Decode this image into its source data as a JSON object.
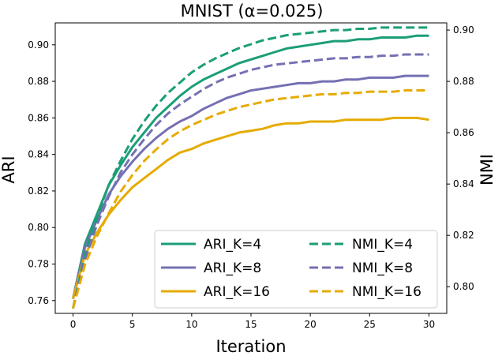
{
  "chart_data": {
    "type": "line",
    "title": "MNIST (α=0.025)",
    "xlabel": "Iteration",
    "ylabel_left": "ARI",
    "ylabel_right": "NMI",
    "xlim": [
      -1.5,
      31.5
    ],
    "ylim_left": [
      0.753,
      0.912
    ],
    "ylim_right": [
      0.7896,
      0.9028
    ],
    "xticks": [
      0,
      5,
      10,
      15,
      20,
      25,
      30
    ],
    "yticks_left": [
      0.76,
      0.78,
      0.8,
      0.82,
      0.84,
      0.86,
      0.88,
      0.9
    ],
    "yticks_right": [
      0.8,
      0.82,
      0.84,
      0.86,
      0.88,
      0.9
    ],
    "yticks_left_labels": [
      "0.76",
      "0.78",
      "0.80",
      "0.82",
      "0.84",
      "0.86",
      "0.88",
      "0.90"
    ],
    "yticks_right_labels": [
      "0.80",
      "0.82",
      "0.84",
      "0.86",
      "0.88",
      "0.90"
    ],
    "grid": false,
    "legend_position": "lower-right",
    "legend_columns": 2,
    "x": [
      0,
      1,
      2,
      3,
      4,
      5,
      6,
      7,
      8,
      9,
      10,
      11,
      12,
      13,
      14,
      15,
      16,
      17,
      18,
      19,
      20,
      21,
      22,
      23,
      24,
      25,
      26,
      27,
      28,
      29,
      30
    ],
    "series": [
      {
        "name": "ARI_K=4",
        "axis": "left",
        "style": "solid",
        "color": "#1b9e77",
        "values": [
          0.761,
          0.791,
          0.807,
          0.823,
          0.834,
          0.844,
          0.852,
          0.86,
          0.866,
          0.872,
          0.877,
          0.881,
          0.884,
          0.887,
          0.89,
          0.892,
          0.894,
          0.896,
          0.898,
          0.899,
          0.9,
          0.901,
          0.902,
          0.902,
          0.903,
          0.903,
          0.904,
          0.904,
          0.904,
          0.905,
          0.905
        ]
      },
      {
        "name": "ARI_K=8",
        "axis": "left",
        "style": "solid",
        "color": "#7570b3",
        "values": [
          0.761,
          0.789,
          0.804,
          0.818,
          0.828,
          0.836,
          0.843,
          0.849,
          0.854,
          0.858,
          0.861,
          0.865,
          0.868,
          0.871,
          0.873,
          0.875,
          0.876,
          0.877,
          0.878,
          0.879,
          0.879,
          0.88,
          0.88,
          0.881,
          0.881,
          0.882,
          0.882,
          0.882,
          0.883,
          0.883,
          0.883
        ]
      },
      {
        "name": "ARI_K=16",
        "axis": "left",
        "style": "solid",
        "color": "#e6ab02",
        "values": [
          0.761,
          0.785,
          0.797,
          0.807,
          0.815,
          0.822,
          0.827,
          0.832,
          0.837,
          0.841,
          0.843,
          0.846,
          0.848,
          0.85,
          0.852,
          0.853,
          0.854,
          0.856,
          0.857,
          0.857,
          0.858,
          0.858,
          0.858,
          0.859,
          0.859,
          0.859,
          0.859,
          0.86,
          0.86,
          0.86,
          0.859
        ]
      },
      {
        "name": "NMI_K=4",
        "axis": "right",
        "style": "dashed",
        "color": "#1b9e77",
        "values": [
          0.7915,
          0.8125,
          0.8265,
          0.8395,
          0.849,
          0.8575,
          0.8645,
          0.8705,
          0.8755,
          0.8795,
          0.8835,
          0.8865,
          0.889,
          0.891,
          0.893,
          0.8945,
          0.896,
          0.897,
          0.898,
          0.8985,
          0.899,
          0.8995,
          0.9,
          0.9,
          0.9005,
          0.9005,
          0.901,
          0.901,
          0.901,
          0.901,
          0.901
        ]
      },
      {
        "name": "NMI_K=8",
        "axis": "right",
        "style": "dashed",
        "color": "#7570b3",
        "values": [
          0.7915,
          0.8105,
          0.824,
          0.835,
          0.8445,
          0.8515,
          0.8575,
          0.863,
          0.8675,
          0.871,
          0.874,
          0.877,
          0.8795,
          0.8815,
          0.883,
          0.8845,
          0.8855,
          0.8865,
          0.887,
          0.8875,
          0.888,
          0.8885,
          0.889,
          0.889,
          0.8895,
          0.8895,
          0.89,
          0.89,
          0.8905,
          0.8905,
          0.8905
        ]
      },
      {
        "name": "NMI_K=16",
        "axis": "right",
        "style": "dashed",
        "color": "#e6ab02",
        "values": [
          0.7915,
          0.8085,
          0.8195,
          0.8285,
          0.837,
          0.8435,
          0.849,
          0.8535,
          0.8575,
          0.8605,
          0.863,
          0.865,
          0.867,
          0.8685,
          0.87,
          0.871,
          0.872,
          0.873,
          0.8735,
          0.874,
          0.8745,
          0.875,
          0.875,
          0.8755,
          0.8755,
          0.876,
          0.876,
          0.876,
          0.8765,
          0.8765,
          0.8765
        ]
      }
    ]
  }
}
